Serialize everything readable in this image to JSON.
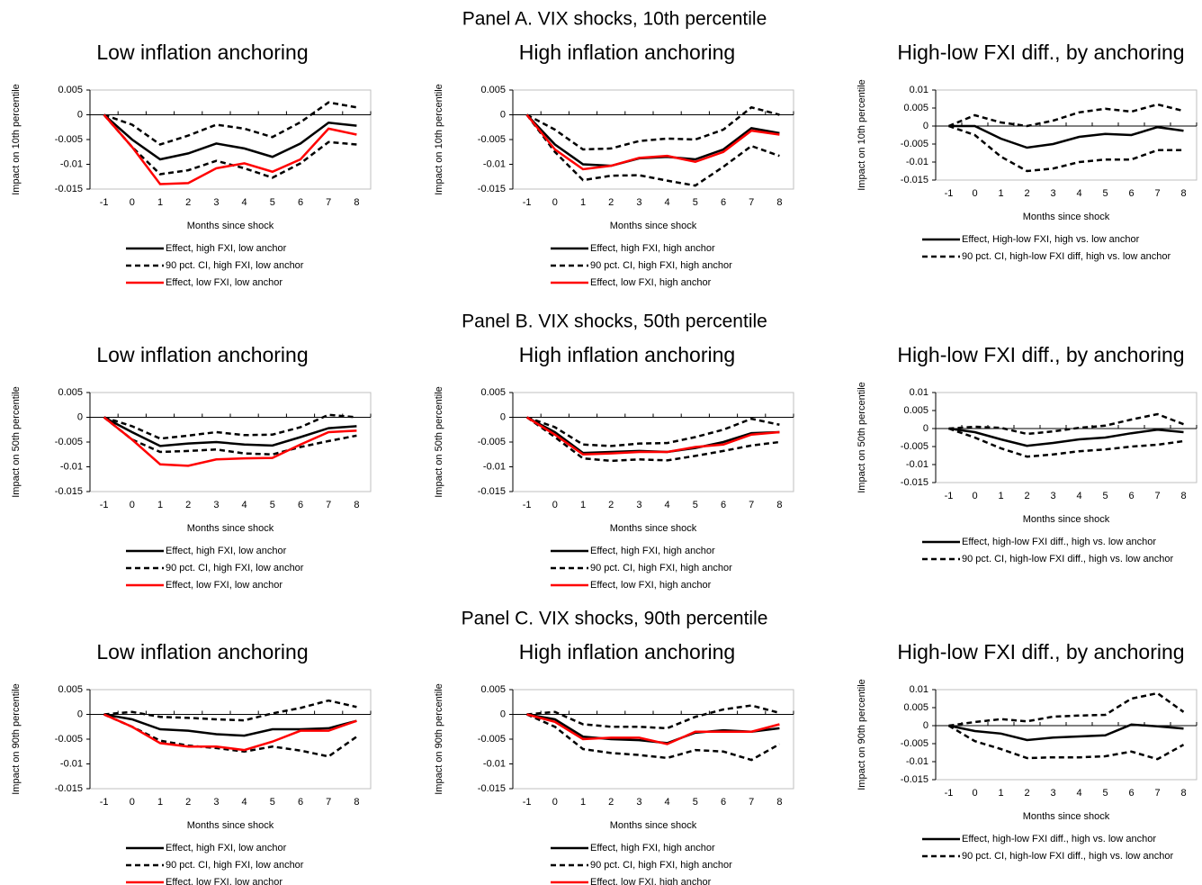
{
  "panels": [
    "Panel A. VIX shocks, 10th percentile",
    "Panel B. VIX shocks, 50th percentile",
    "Panel C. VIX shocks, 90th percentile"
  ],
  "chart_data": [
    {
      "type": "line",
      "title": "Low inflation anchoring",
      "ylabel": "Impact on 10th percentile",
      "xlabel": "Months since shock",
      "categories": [
        "-1",
        "0",
        "1",
        "2",
        "3",
        "4",
        "5",
        "6",
        "7",
        "8"
      ],
      "ylim": [
        -0.015,
        0.005
      ],
      "yticks": [
        0.005,
        0,
        -0.005,
        -0.01,
        -0.015
      ],
      "series": [
        {
          "name": "Effect, high FXI, low anchor",
          "color": "#000000",
          "style": "solid",
          "values": [
            0,
            -0.005,
            -0.009,
            -0.0078,
            -0.0058,
            -0.0068,
            -0.0085,
            -0.0058,
            -0.0016,
            -0.0022
          ]
        },
        {
          "name": "90 pct. CI, high FXI, low anchor",
          "color": "#000000",
          "style": "dashed",
          "lower": [
            0,
            -0.0065,
            -0.012,
            -0.0112,
            -0.0093,
            -0.0108,
            -0.0127,
            -0.0098,
            -0.0055,
            -0.006
          ],
          "upper": [
            0,
            -0.002,
            -0.006,
            -0.0042,
            -0.002,
            -0.0028,
            -0.0045,
            -0.0015,
            0.0025,
            0.0015
          ]
        },
        {
          "name": "Effect, low FXI, low anchor",
          "color": "#ff0000",
          "style": "solid",
          "values": [
            0,
            -0.0065,
            -0.014,
            -0.0138,
            -0.0108,
            -0.0098,
            -0.0115,
            -0.009,
            -0.0028,
            -0.004
          ]
        }
      ]
    },
    {
      "type": "line",
      "title": "High inflation anchoring",
      "ylabel": "Impact on 10th percentile",
      "xlabel": "Months since shock",
      "categories": [
        "-1",
        "0",
        "1",
        "2",
        "3",
        "4",
        "5",
        "6",
        "7",
        "8"
      ],
      "ylim": [
        -0.015,
        0.005
      ],
      "yticks": [
        0.005,
        0,
        -0.005,
        -0.01,
        -0.015
      ],
      "series": [
        {
          "name": "Effect, high FXI, high anchor",
          "color": "#000000",
          "style": "solid",
          "values": [
            0,
            -0.006,
            -0.01,
            -0.0103,
            -0.0088,
            -0.0085,
            -0.009,
            -0.007,
            -0.0027,
            -0.0037
          ]
        },
        {
          "name": "90 pct. CI, high FXI, high anchor",
          "color": "#000000",
          "style": "dashed",
          "lower": [
            0,
            -0.0075,
            -0.0132,
            -0.0123,
            -0.0122,
            -0.0133,
            -0.0143,
            -0.0105,
            -0.0063,
            -0.0083
          ],
          "upper": [
            0,
            -0.003,
            -0.007,
            -0.0068,
            -0.0053,
            -0.0048,
            -0.005,
            -0.003,
            0.0015,
            0
          ]
        },
        {
          "name": "Effect, low FXI, high anchor",
          "color": "#ff0000",
          "style": "solid",
          "values": [
            0,
            -0.007,
            -0.011,
            -0.0103,
            -0.0087,
            -0.0083,
            -0.0095,
            -0.0075,
            -0.0032,
            -0.004
          ]
        }
      ]
    },
    {
      "type": "line",
      "title": "High-low FXI diff., by anchoring",
      "ylabel": "Impact on 10th percentile",
      "xlabel": "Months since shock",
      "categories": [
        "-1",
        "0",
        "1",
        "2",
        "3",
        "4",
        "5",
        "6",
        "7",
        "8"
      ],
      "ylim": [
        -0.015,
        0.01
      ],
      "yticks": [
        0.01,
        0.005,
        0,
        -0.005,
        -0.01,
        -0.015
      ],
      "series": [
        {
          "name": "Effect, High-low FXI, high vs. low anchor",
          "color": "#000000",
          "style": "solid",
          "values": [
            0,
            0,
            -0.0035,
            -0.006,
            -0.005,
            -0.003,
            -0.0022,
            -0.0025,
            -0.0003,
            -0.0013
          ]
        },
        {
          "name": "90 pct. CI, high-low FXI diff, high vs. low anchor",
          "color": "#000000",
          "style": "dashed",
          "lower": [
            0,
            -0.0025,
            -0.0085,
            -0.0125,
            -0.0118,
            -0.01,
            -0.0093,
            -0.0093,
            -0.0067,
            -0.0067
          ],
          "upper": [
            0,
            0.003,
            0.001,
            0,
            0.0015,
            0.0038,
            0.0048,
            0.004,
            0.006,
            0.0042
          ]
        }
      ]
    },
    {
      "type": "line",
      "title": "Low inflation anchoring",
      "ylabel": "Impact on 50th percentile",
      "xlabel": "Months since shock",
      "categories": [
        "-1",
        "0",
        "1",
        "2",
        "3",
        "4",
        "5",
        "6",
        "7",
        "8"
      ],
      "ylim": [
        -0.015,
        0.005
      ],
      "yticks": [
        0.005,
        0,
        -0.005,
        -0.01,
        -0.015
      ],
      "series": [
        {
          "name": "Effect, high FXI, low anchor",
          "color": "#000000",
          "style": "solid",
          "values": [
            0,
            -0.003,
            -0.0058,
            -0.0053,
            -0.005,
            -0.0055,
            -0.0057,
            -0.004,
            -0.0022,
            -0.0018
          ]
        },
        {
          "name": "90 pct. CI, high FXI, low anchor",
          "color": "#000000",
          "style": "dashed",
          "lower": [
            0,
            -0.0045,
            -0.007,
            -0.0068,
            -0.0065,
            -0.0073,
            -0.0075,
            -0.006,
            -0.0048,
            -0.0037
          ],
          "upper": [
            0,
            -0.0018,
            -0.0043,
            -0.0037,
            -0.003,
            -0.0036,
            -0.0035,
            -0.002,
            0.0005,
            0
          ]
        },
        {
          "name": "Effect, low FXI, low anchor",
          "color": "#ff0000",
          "style": "solid",
          "values": [
            0,
            -0.0045,
            -0.0095,
            -0.0098,
            -0.0085,
            -0.0083,
            -0.0082,
            -0.0055,
            -0.003,
            -0.0027
          ]
        }
      ]
    },
    {
      "type": "line",
      "title": "High inflation anchoring",
      "ylabel": "Impact on 50th percentile",
      "xlabel": "Months since shock",
      "categories": [
        "-1",
        "0",
        "1",
        "2",
        "3",
        "4",
        "5",
        "6",
        "7",
        "8"
      ],
      "ylim": [
        -0.015,
        0.005
      ],
      "yticks": [
        0.005,
        0,
        -0.005,
        -0.01,
        -0.015
      ],
      "series": [
        {
          "name": "Effect, high FXI, high anchor",
          "color": "#000000",
          "style": "solid",
          "values": [
            0,
            -0.003,
            -0.0072,
            -0.007,
            -0.0068,
            -0.007,
            -0.0062,
            -0.005,
            -0.0032,
            -0.003
          ]
        },
        {
          "name": "90 pct. CI, high FXI, high anchor",
          "color": "#000000",
          "style": "dashed",
          "lower": [
            0,
            -0.004,
            -0.0083,
            -0.0088,
            -0.0085,
            -0.0087,
            -0.0078,
            -0.0068,
            -0.0057,
            -0.005
          ],
          "upper": [
            0,
            -0.002,
            -0.0055,
            -0.0058,
            -0.0053,
            -0.0052,
            -0.004,
            -0.0025,
            -0.0003,
            -0.0015
          ]
        },
        {
          "name": "Effect, low FXI, high anchor",
          "color": "#ff0000",
          "style": "solid",
          "values": [
            0,
            -0.0035,
            -0.0075,
            -0.0073,
            -0.007,
            -0.007,
            -0.006,
            -0.0055,
            -0.0035,
            -0.003
          ]
        }
      ]
    },
    {
      "type": "line",
      "title": "High-low FXI diff., by anchoring",
      "ylabel": "Impact on 50th percentile",
      "xlabel": "Months since shock",
      "categories": [
        "-1",
        "0",
        "1",
        "2",
        "3",
        "4",
        "5",
        "6",
        "7",
        "8"
      ],
      "ylim": [
        -0.015,
        0.01
      ],
      "yticks": [
        0.01,
        0.005,
        0,
        -0.005,
        -0.01,
        -0.015
      ],
      "series": [
        {
          "name": "Effect, high-low FXI diff., high vs. low anchor",
          "color": "#000000",
          "style": "solid",
          "values": [
            0,
            -0.001,
            -0.003,
            -0.0048,
            -0.004,
            -0.003,
            -0.0025,
            -0.0013,
            -0.0003,
            -0.001
          ]
        },
        {
          "name": "90 pct. CI, high-low FXI diff., high vs. low anchor",
          "color": "#000000",
          "style": "dashed",
          "lower": [
            0,
            -0.0025,
            -0.0055,
            -0.0078,
            -0.0072,
            -0.0063,
            -0.0058,
            -0.005,
            -0.0045,
            -0.0035
          ],
          "upper": [
            0,
            0.0005,
            0.0002,
            -0.0015,
            -0.0008,
            0.0002,
            0.0008,
            0.0025,
            0.004,
            0.0012
          ]
        }
      ]
    },
    {
      "type": "line",
      "title": "Low inflation anchoring",
      "ylabel": "Impact on 90th percentile",
      "xlabel": "Months since shock",
      "categories": [
        "-1",
        "0",
        "1",
        "2",
        "3",
        "4",
        "5",
        "6",
        "7",
        "8"
      ],
      "ylim": [
        -0.015,
        0.005
      ],
      "yticks": [
        0.005,
        0,
        -0.005,
        -0.01,
        -0.015
      ],
      "series": [
        {
          "name": "Effect, high FXI, low anchor",
          "color": "#000000",
          "style": "solid",
          "values": [
            0,
            -0.001,
            -0.003,
            -0.0033,
            -0.004,
            -0.0043,
            -0.003,
            -0.003,
            -0.0028,
            -0.0013
          ]
        },
        {
          "name": "90 pct. CI, high FXI, low anchor",
          "color": "#000000",
          "style": "dashed",
          "lower": [
            0,
            -0.0025,
            -0.0053,
            -0.0063,
            -0.0068,
            -0.0075,
            -0.0065,
            -0.0073,
            -0.0085,
            -0.0045
          ],
          "upper": [
            0,
            0.0005,
            -0.0005,
            -0.0007,
            -0.001,
            -0.0012,
            0.0002,
            0.0013,
            0.0028,
            0.0015
          ]
        },
        {
          "name": "Effect, low FXI, low anchor",
          "color": "#ff0000",
          "style": "solid",
          "values": [
            0,
            -0.0025,
            -0.0058,
            -0.0065,
            -0.0065,
            -0.0072,
            -0.0055,
            -0.0033,
            -0.0033,
            -0.0013
          ]
        }
      ]
    },
    {
      "type": "line",
      "title": "High inflation anchoring",
      "ylabel": "Impact on 90th percentile",
      "xlabel": "Months since shock",
      "categories": [
        "-1",
        "0",
        "1",
        "2",
        "3",
        "4",
        "5",
        "6",
        "7",
        "8"
      ],
      "ylim": [
        -0.015,
        0.005
      ],
      "yticks": [
        0.005,
        0,
        -0.005,
        -0.01,
        -0.015
      ],
      "series": [
        {
          "name": "Effect, high FXI, high anchor",
          "color": "#000000",
          "style": "solid",
          "values": [
            0,
            -0.001,
            -0.0045,
            -0.005,
            -0.0052,
            -0.0058,
            -0.0037,
            -0.0032,
            -0.0035,
            -0.0028
          ]
        },
        {
          "name": "90 pct. CI, high FXI, high anchor",
          "color": "#000000",
          "style": "dashed",
          "lower": [
            0,
            -0.0025,
            -0.007,
            -0.0078,
            -0.0082,
            -0.0088,
            -0.0072,
            -0.0075,
            -0.0092,
            -0.006
          ],
          "upper": [
            0,
            0.0005,
            -0.002,
            -0.0025,
            -0.0025,
            -0.0028,
            -0.0005,
            0.001,
            0.0018,
            0.0003
          ]
        },
        {
          "name": "Effect, low FXI, high anchor",
          "color": "#ff0000",
          "style": "solid",
          "values": [
            0,
            -0.0015,
            -0.005,
            -0.0047,
            -0.0047,
            -0.006,
            -0.0035,
            -0.0035,
            -0.0035,
            -0.002
          ]
        }
      ]
    },
    {
      "type": "line",
      "title": "High-low FXI diff., by anchoring",
      "ylabel": "Impact on 90th percentile",
      "xlabel": "Months since shock",
      "categories": [
        "-1",
        "0",
        "1",
        "2",
        "3",
        "4",
        "5",
        "6",
        "7",
        "8"
      ],
      "ylim": [
        -0.015,
        0.01
      ],
      "yticks": [
        0.01,
        0.005,
        0,
        -0.005,
        -0.01,
        -0.015
      ],
      "series": [
        {
          "name": "Effect, high-low FXI diff., high vs. low anchor",
          "color": "#000000",
          "style": "solid",
          "values": [
            0,
            -0.0015,
            -0.0022,
            -0.004,
            -0.0033,
            -0.003,
            -0.0027,
            0.0003,
            -0.0002,
            -0.0008
          ]
        },
        {
          "name": "90 pct. CI, high-low FXI diff., high vs. low anchor",
          "color": "#000000",
          "style": "dashed",
          "lower": [
            0,
            -0.0043,
            -0.0065,
            -0.009,
            -0.0088,
            -0.0088,
            -0.0085,
            -0.0072,
            -0.0093,
            -0.0053
          ],
          "upper": [
            0,
            0.001,
            0.0018,
            0.0012,
            0.0025,
            0.0028,
            0.003,
            0.0075,
            0.009,
            0.0038
          ]
        }
      ]
    }
  ]
}
